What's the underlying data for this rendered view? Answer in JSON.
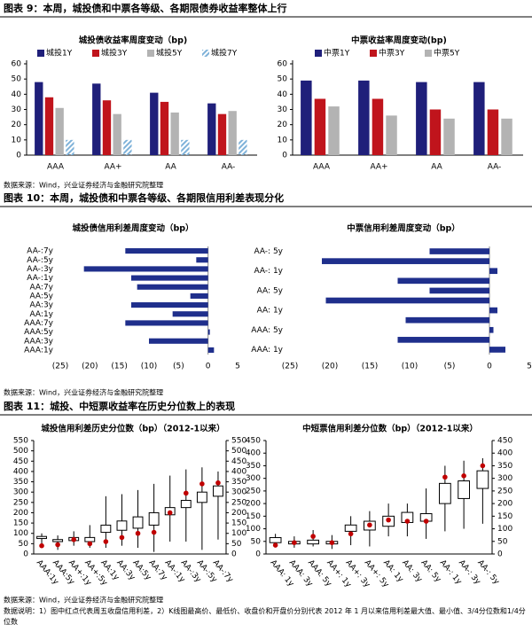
{
  "headers": [
    "图表 9：本周，城投债和中票各等级、各期限债券收益率整体上行",
    "图表 10：本周，城投债和中票各等级、各期限信用利差表现分化",
    "图表 11：城投、中短票收益率在历史分位数上的表现"
  ],
  "sources": [
    "数据来源：Wind，兴业证券经济与金融研究院整理",
    "数据来源：Wind，兴业证券经济与金融研究院整理",
    "数据来源：Wind，兴业证券经济与金融研究院整理"
  ],
  "note": "数据说明：1）图中红点代表周五收盘信用利差，2）K线图最高价、最低价、收盘价和开盘价分别代表 2012 年 1 月以来信用利差最大值、最小值、3/4分位数和1/4分位数",
  "chart_data": [
    {
      "type": "bar",
      "title": "城投债收益率周度变动（bp)",
      "categories": [
        "AAA",
        "AA+",
        "AA",
        "AA-"
      ],
      "series": [
        {
          "name": "城投1Y",
          "color": "#1f1f7a",
          "values": [
            48,
            47,
            41,
            34
          ]
        },
        {
          "name": "城投3Y",
          "color": "#c0141c",
          "values": [
            38,
            36,
            35,
            27
          ]
        },
        {
          "name": "城投5Y",
          "color": "#b3b3b3",
          "values": [
            31,
            27,
            28,
            29
          ]
        },
        {
          "name": "城投7Y",
          "color": "#7fb2d9",
          "pattern": "hatch",
          "values": [
            10,
            10,
            10,
            10
          ]
        }
      ],
      "ylim": [
        0,
        60
      ],
      "yticks": [
        0,
        10,
        20,
        30,
        40,
        50,
        60
      ]
    },
    {
      "type": "bar",
      "title": "中票收益率周度变动(bp)",
      "categories": [
        "AAA",
        "AA+",
        "AA",
        "AA-"
      ],
      "series": [
        {
          "name": "中票1Y",
          "color": "#1f1f7a",
          "values": [
            49,
            49,
            48,
            48
          ]
        },
        {
          "name": "中票3Y",
          "color": "#c0141c",
          "values": [
            37,
            37,
            30,
            30
          ]
        },
        {
          "name": "中票5Y",
          "color": "#b3b3b3",
          "values": [
            32,
            26,
            24,
            24
          ]
        }
      ],
      "ylim": [
        0,
        60
      ],
      "yticks": [
        0,
        10,
        20,
        30,
        40,
        50,
        60
      ]
    },
    {
      "type": "hbar",
      "title": "城投债信用利差周度变动（bp）",
      "color": "#1f2f8c",
      "categories": [
        "AA-:7y",
        "AA-:5y",
        "AA-:3y",
        "AA-:1y",
        "AA:7y",
        "AA:5y",
        "AA:3y",
        "AA:1y",
        "AAA:7y",
        "AAA:5y",
        "AAA:3y",
        "AAA:1y"
      ],
      "values": [
        -14,
        -2,
        -21,
        -13,
        -12,
        -3,
        -13,
        -6,
        -14,
        0.3,
        -10,
        1
      ],
      "xlim": [
        -25,
        5
      ],
      "xticks": [
        {
          "value": -25,
          "label": "(25)"
        },
        {
          "value": -20,
          "label": "(20)"
        },
        {
          "value": -15,
          "label": "(15)"
        },
        {
          "value": -10,
          "label": "(10)"
        },
        {
          "value": -5,
          "label": "(5)"
        },
        0,
        5
      ]
    },
    {
      "type": "hbar",
      "title": "中票信用利差周度变动（bp）",
      "color": "#1f2f8c",
      "categories": [
        "AA-: 5y",
        null,
        "AA-: 1y",
        null,
        "AA: 5y",
        null,
        "AA: 1y",
        null,
        "AAA: 5y",
        null,
        "AAA: 1y"
      ],
      "values": [
        -7.5,
        -21,
        1,
        -11.5,
        -7.5,
        -20.5,
        1,
        -10.5,
        0.5,
        -11.5,
        2
      ],
      "xlim": [
        -25,
        5
      ],
      "xticks": [
        {
          "value": -25,
          "label": "(25)"
        },
        {
          "value": -20,
          "label": "(20)"
        },
        {
          "value": -15,
          "label": "(15)"
        },
        {
          "value": -10,
          "label": "(10)"
        },
        {
          "value": -5,
          "label": "(5)"
        },
        0,
        5
      ]
    },
    {
      "type": "box",
      "title": "城投信用利差历史分位数（bp）（2012-1以来）",
      "dot_color": "#c00000",
      "categories": [
        "AAA:1y",
        "AAA:5y",
        "AA+:1y",
        "AA+:5y",
        "AA:1y",
        "AA:3y",
        "AA:5y",
        "AA:7y",
        "AA-:1y",
        "AA-:3y",
        "AA-:5y",
        "AA-:7y"
      ],
      "max": [
        100,
        90,
        110,
        140,
        280,
        290,
        310,
        340,
        380,
        410,
        420,
        400
      ],
      "min": [
        30,
        20,
        40,
        30,
        30,
        40,
        30,
        10,
        60,
        60,
        20,
        70
      ],
      "q3": [
        85,
        70,
        80,
        80,
        140,
        160,
        180,
        200,
        225,
        260,
        300,
        330
      ],
      "q1": [
        75,
        60,
        65,
        60,
        105,
        115,
        125,
        140,
        190,
        225,
        250,
        280
      ],
      "current": [
        40,
        45,
        70,
        50,
        60,
        80,
        100,
        105,
        200,
        295,
        340,
        345
      ],
      "ylim": [
        0,
        550
      ],
      "yticks": [
        0,
        50,
        100,
        150,
        200,
        250,
        300,
        350,
        400,
        450,
        500,
        550
      ],
      "y2lim": [
        0,
        550
      ],
      "y2ticks": [
        0,
        50,
        100,
        150,
        200,
        250,
        300,
        350,
        400,
        450,
        500,
        550
      ]
    },
    {
      "type": "box",
      "title": "中短票信用利差分位数（bp）（2012-1以来）",
      "dot_color": "#c00000",
      "categories": [
        "AAA: 1y",
        "AAA: 3y",
        "AAA: 5y",
        "AA+: 1y",
        "AA+: 3y",
        "AA+: 5y",
        "AA: 1y",
        "AA: 3y",
        "AA: 5y",
        "AA-: 1y",
        "AA-: 3y",
        "AA-: 5y"
      ],
      "max": [
        80,
        70,
        95,
        75,
        150,
        170,
        200,
        200,
        260,
        350,
        370,
        380
      ],
      "min": [
        30,
        25,
        30,
        20,
        35,
        30,
        70,
        70,
        60,
        90,
        100,
        120
      ],
      "q3": [
        65,
        50,
        55,
        50,
        115,
        130,
        150,
        165,
        160,
        280,
        290,
        330
      ],
      "q1": [
        45,
        40,
        40,
        40,
        90,
        95,
        110,
        125,
        130,
        200,
        220,
        260
      ],
      "current": [
        35,
        45,
        70,
        45,
        80,
        115,
        135,
        130,
        130,
        305,
        310,
        350
      ],
      "ylim": [
        0,
        450
      ],
      "yticks": [
        0,
        50,
        100,
        150,
        200,
        250,
        300,
        350,
        400,
        450
      ],
      "y2lim": [
        0,
        450
      ],
      "y2ticks": [
        0,
        50,
        100,
        150,
        200,
        250,
        300,
        350,
        400,
        450
      ]
    }
  ]
}
